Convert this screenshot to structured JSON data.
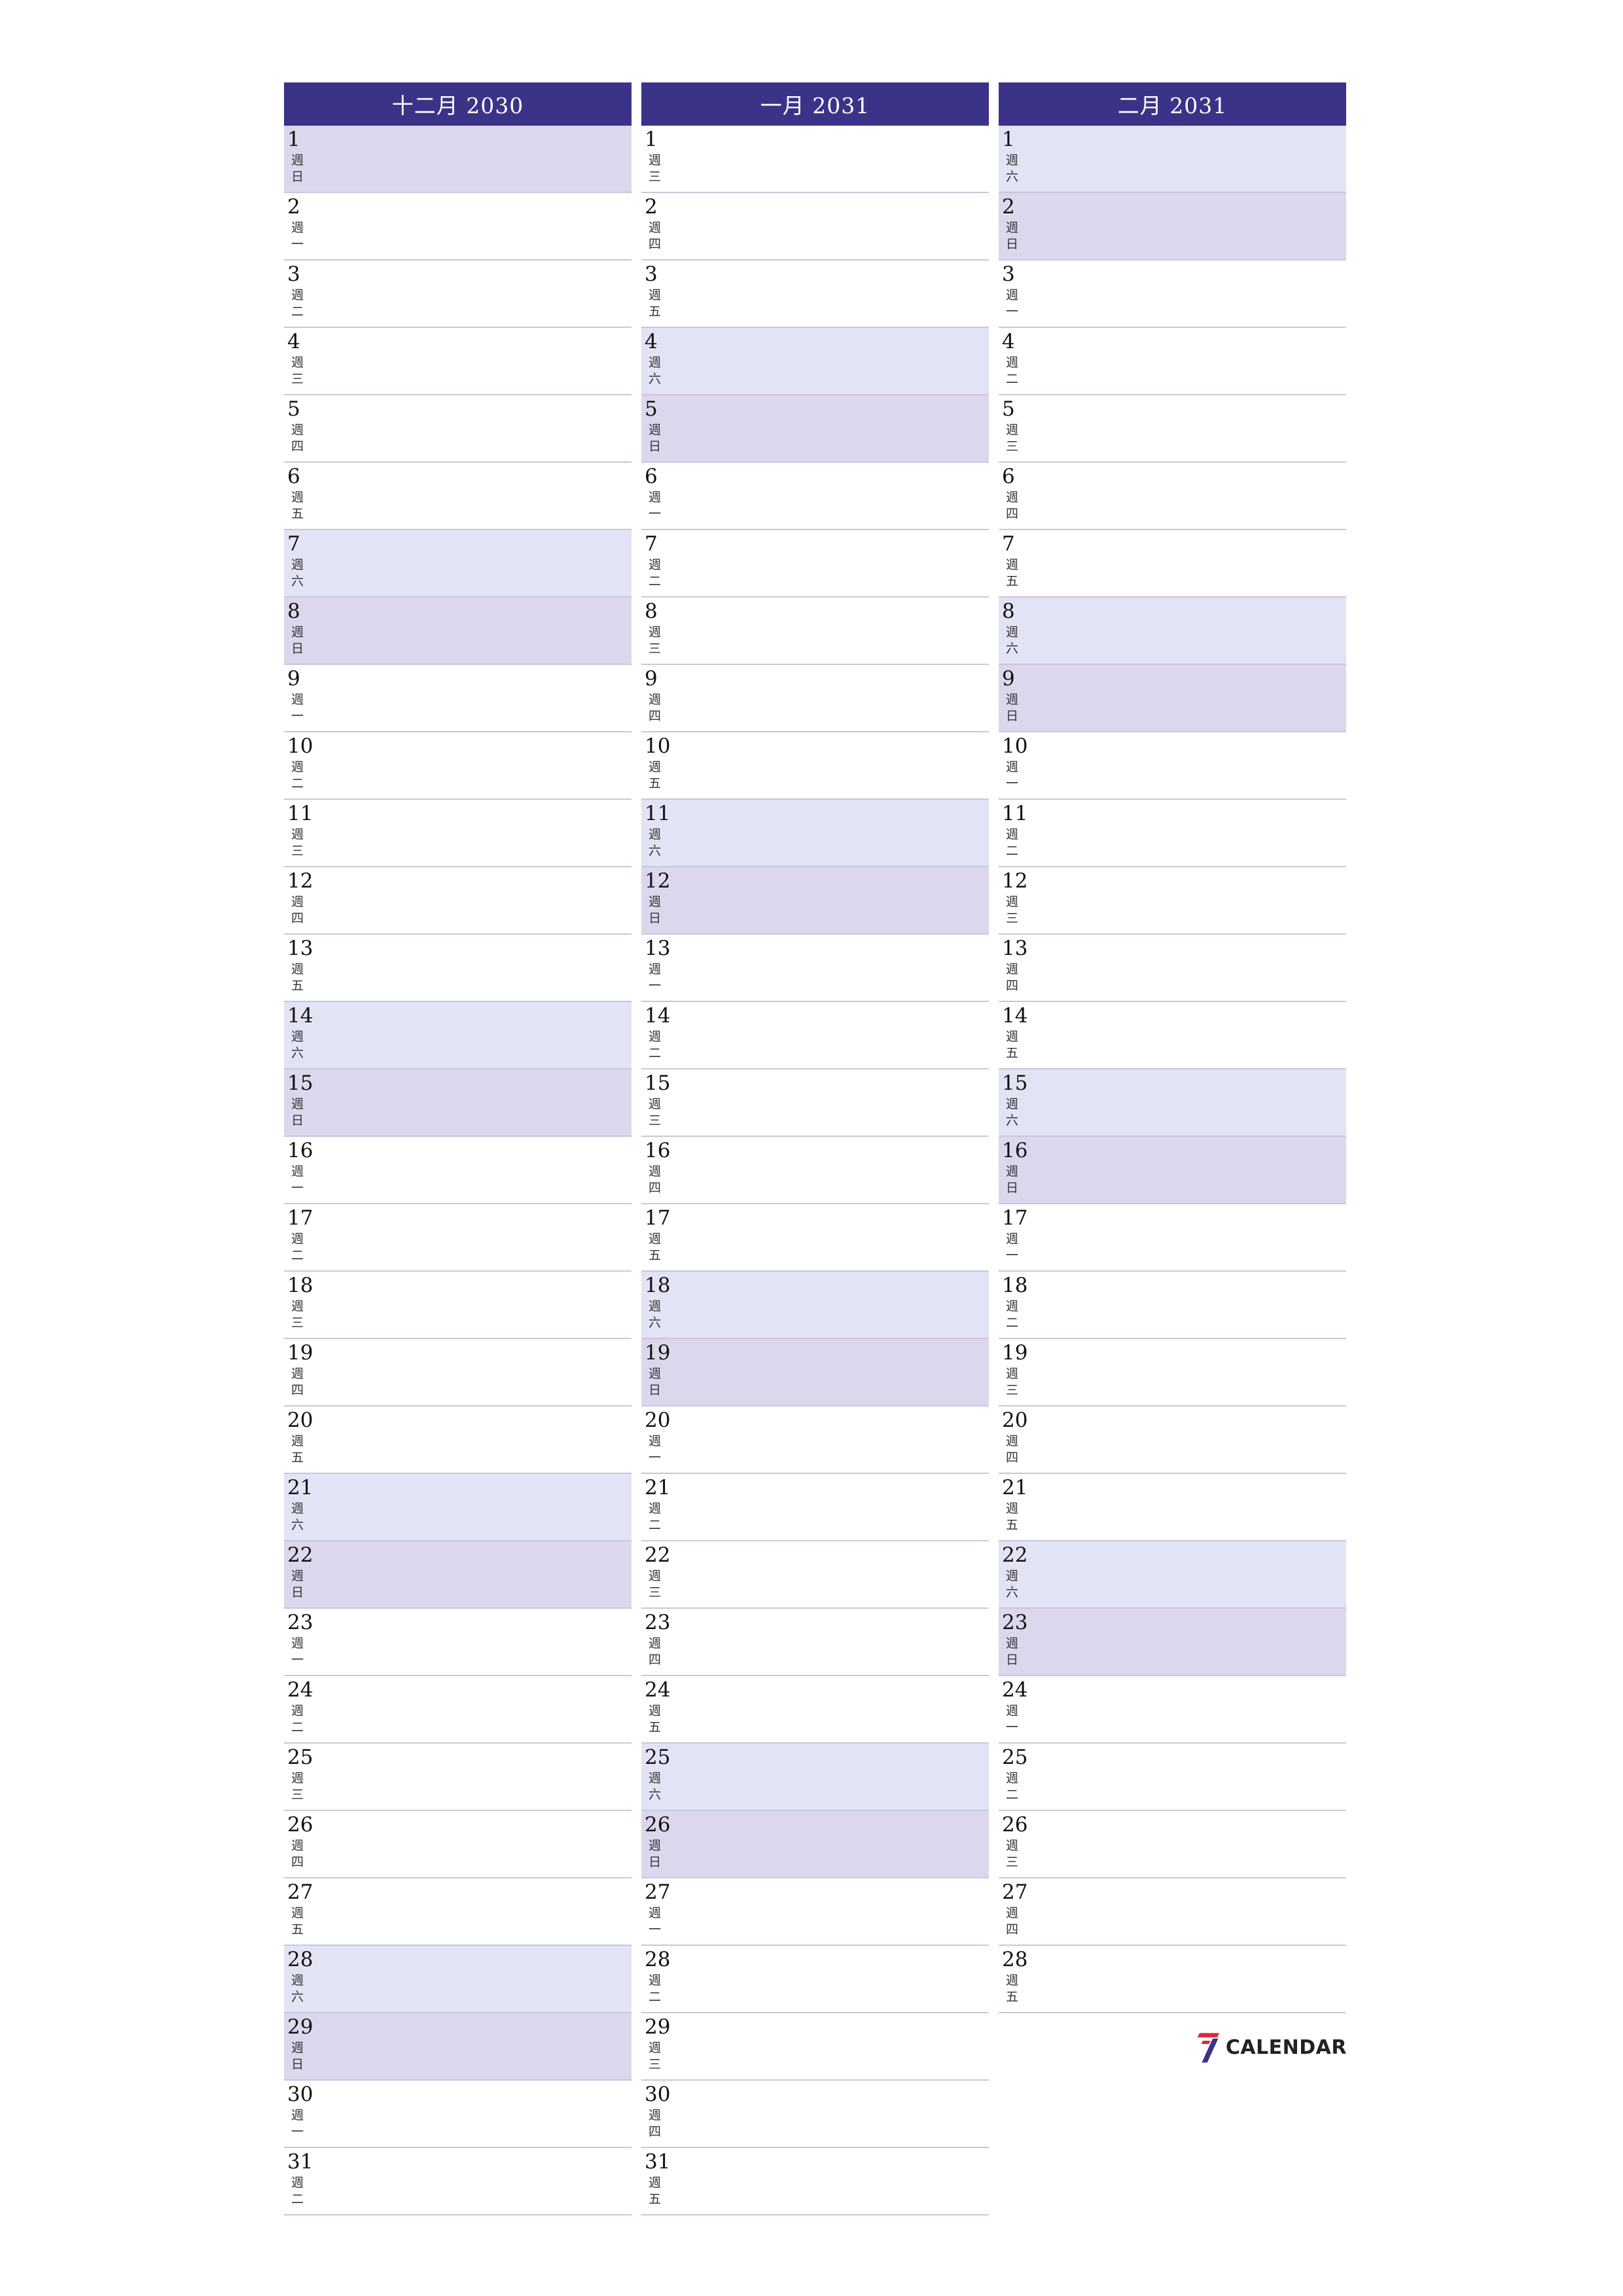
{
  "weekday_prefix": "週",
  "months": [
    {
      "title": "十二月 2030",
      "days": [
        {
          "num": "1",
          "wd": "日"
        },
        {
          "num": "2",
          "wd": "一"
        },
        {
          "num": "3",
          "wd": "二"
        },
        {
          "num": "4",
          "wd": "三"
        },
        {
          "num": "5",
          "wd": "四"
        },
        {
          "num": "6",
          "wd": "五"
        },
        {
          "num": "7",
          "wd": "六"
        },
        {
          "num": "8",
          "wd": "日"
        },
        {
          "num": "9",
          "wd": "一"
        },
        {
          "num": "10",
          "wd": "二"
        },
        {
          "num": "11",
          "wd": "三"
        },
        {
          "num": "12",
          "wd": "四"
        },
        {
          "num": "13",
          "wd": "五"
        },
        {
          "num": "14",
          "wd": "六"
        },
        {
          "num": "15",
          "wd": "日"
        },
        {
          "num": "16",
          "wd": "一"
        },
        {
          "num": "17",
          "wd": "二"
        },
        {
          "num": "18",
          "wd": "三"
        },
        {
          "num": "19",
          "wd": "四"
        },
        {
          "num": "20",
          "wd": "五"
        },
        {
          "num": "21",
          "wd": "六"
        },
        {
          "num": "22",
          "wd": "日"
        },
        {
          "num": "23",
          "wd": "一"
        },
        {
          "num": "24",
          "wd": "二"
        },
        {
          "num": "25",
          "wd": "三"
        },
        {
          "num": "26",
          "wd": "四"
        },
        {
          "num": "27",
          "wd": "五"
        },
        {
          "num": "28",
          "wd": "六"
        },
        {
          "num": "29",
          "wd": "日"
        },
        {
          "num": "30",
          "wd": "一"
        },
        {
          "num": "31",
          "wd": "二"
        }
      ]
    },
    {
      "title": "一月 2031",
      "days": [
        {
          "num": "1",
          "wd": "三"
        },
        {
          "num": "2",
          "wd": "四"
        },
        {
          "num": "3",
          "wd": "五"
        },
        {
          "num": "4",
          "wd": "六"
        },
        {
          "num": "5",
          "wd": "日"
        },
        {
          "num": "6",
          "wd": "一"
        },
        {
          "num": "7",
          "wd": "二"
        },
        {
          "num": "8",
          "wd": "三"
        },
        {
          "num": "9",
          "wd": "四"
        },
        {
          "num": "10",
          "wd": "五"
        },
        {
          "num": "11",
          "wd": "六"
        },
        {
          "num": "12",
          "wd": "日"
        },
        {
          "num": "13",
          "wd": "一"
        },
        {
          "num": "14",
          "wd": "二"
        },
        {
          "num": "15",
          "wd": "三"
        },
        {
          "num": "16",
          "wd": "四"
        },
        {
          "num": "17",
          "wd": "五"
        },
        {
          "num": "18",
          "wd": "六"
        },
        {
          "num": "19",
          "wd": "日"
        },
        {
          "num": "20",
          "wd": "一"
        },
        {
          "num": "21",
          "wd": "二"
        },
        {
          "num": "22",
          "wd": "三"
        },
        {
          "num": "23",
          "wd": "四"
        },
        {
          "num": "24",
          "wd": "五"
        },
        {
          "num": "25",
          "wd": "六"
        },
        {
          "num": "26",
          "wd": "日"
        },
        {
          "num": "27",
          "wd": "一"
        },
        {
          "num": "28",
          "wd": "二"
        },
        {
          "num": "29",
          "wd": "三"
        },
        {
          "num": "30",
          "wd": "四"
        },
        {
          "num": "31",
          "wd": "五"
        }
      ]
    },
    {
      "title": "二月 2031",
      "days": [
        {
          "num": "1",
          "wd": "六"
        },
        {
          "num": "2",
          "wd": "日"
        },
        {
          "num": "3",
          "wd": "一"
        },
        {
          "num": "4",
          "wd": "二"
        },
        {
          "num": "5",
          "wd": "三"
        },
        {
          "num": "6",
          "wd": "四"
        },
        {
          "num": "7",
          "wd": "五"
        },
        {
          "num": "8",
          "wd": "六"
        },
        {
          "num": "9",
          "wd": "日"
        },
        {
          "num": "10",
          "wd": "一"
        },
        {
          "num": "11",
          "wd": "二"
        },
        {
          "num": "12",
          "wd": "三"
        },
        {
          "num": "13",
          "wd": "四"
        },
        {
          "num": "14",
          "wd": "五"
        },
        {
          "num": "15",
          "wd": "六"
        },
        {
          "num": "16",
          "wd": "日"
        },
        {
          "num": "17",
          "wd": "一"
        },
        {
          "num": "18",
          "wd": "二"
        },
        {
          "num": "19",
          "wd": "三"
        },
        {
          "num": "20",
          "wd": "四"
        },
        {
          "num": "21",
          "wd": "五"
        },
        {
          "num": "22",
          "wd": "六"
        },
        {
          "num": "23",
          "wd": "日"
        },
        {
          "num": "24",
          "wd": "一"
        },
        {
          "num": "25",
          "wd": "二"
        },
        {
          "num": "26",
          "wd": "三"
        },
        {
          "num": "27",
          "wd": "四"
        },
        {
          "num": "28",
          "wd": "五"
        }
      ]
    }
  ],
  "logo": {
    "text": "CALENDAR",
    "icon": "seven-logo-icon"
  },
  "colors": {
    "header_bg": "#3b3387",
    "saturday_bg": "#e3e3f6",
    "sunday_bg": "#dcd7ec",
    "logo_red": "#e0263a",
    "logo_blue": "#3b3387"
  }
}
